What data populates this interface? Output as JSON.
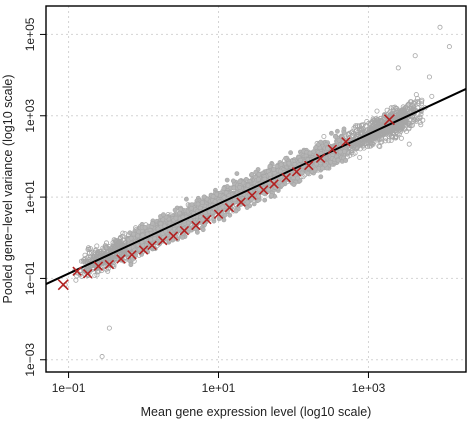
{
  "chart_data": {
    "type": "scatter",
    "title": "",
    "xlabel": "Mean gene expression level (log10 scale)",
    "ylabel": "Pooled gene−level variance (log10 scale)",
    "x_scale": "log10",
    "y_scale": "log10",
    "xlim": [
      0.05,
      20000
    ],
    "ylim": [
      0.0005,
      500000
    ],
    "x_ticks": [
      0.1,
      10,
      1000
    ],
    "x_tick_labels": [
      "1e−01",
      "1e+01",
      "1e+03"
    ],
    "y_ticks": [
      0.001,
      0.1,
      10,
      1000,
      100000
    ],
    "y_tick_labels": [
      "1e−03",
      "1e−01",
      "1e+01",
      "1e+03",
      "1e+05"
    ],
    "grid": true,
    "colors": {
      "points": "#a6a6a6",
      "markers": "#b22222",
      "fit_line": "#000000",
      "grid": "#d4d4d4"
    },
    "fit_line": {
      "x": [
        0.05,
        20000
      ],
      "y": [
        0.0727,
        4570
      ]
    },
    "points_cloud": {
      "description_values": "gene-level observations",
      "x_range": [
        0.08,
        14000
      ],
      "y_range": [
        0.0006,
        140000
      ]
    },
    "outliers": [
      {
        "x": 1300,
        "y": 1300
      },
      {
        "x": 2500,
        "y": 15000
      },
      {
        "x": 4200,
        "y": 30000
      },
      {
        "x": 6500,
        "y": 9000
      },
      {
        "x": 9000,
        "y": 150000
      },
      {
        "x": 12000,
        "y": 50000
      },
      {
        "x": 3500,
        "y": 200
      },
      {
        "x": 0.28,
        "y": 0.0012
      },
      {
        "x": 0.35,
        "y": 0.006
      },
      {
        "x": 0.09,
        "y": 0.07
      },
      {
        "x": 0.12,
        "y": 0.15
      },
      {
        "x": 7000,
        "y": 3000
      }
    ],
    "binned_means": {
      "x": [
        0.085,
        0.13,
        0.18,
        0.25,
        0.35,
        0.5,
        0.7,
        1,
        1.3,
        1.8,
        2.5,
        3.5,
        5,
        7,
        10,
        14,
        20,
        28,
        40,
        55,
        80,
        110,
        160,
        230,
        330,
        500,
        1900
      ],
      "y": [
        0.07,
        0.15,
        0.13,
        0.2,
        0.22,
        0.3,
        0.38,
        0.5,
        0.65,
        0.85,
        1.1,
        1.5,
        2,
        2.8,
        3.8,
        5.5,
        7.5,
        11,
        15,
        21,
        30,
        42,
        60,
        90,
        150,
        230,
        800
      ]
    }
  }
}
